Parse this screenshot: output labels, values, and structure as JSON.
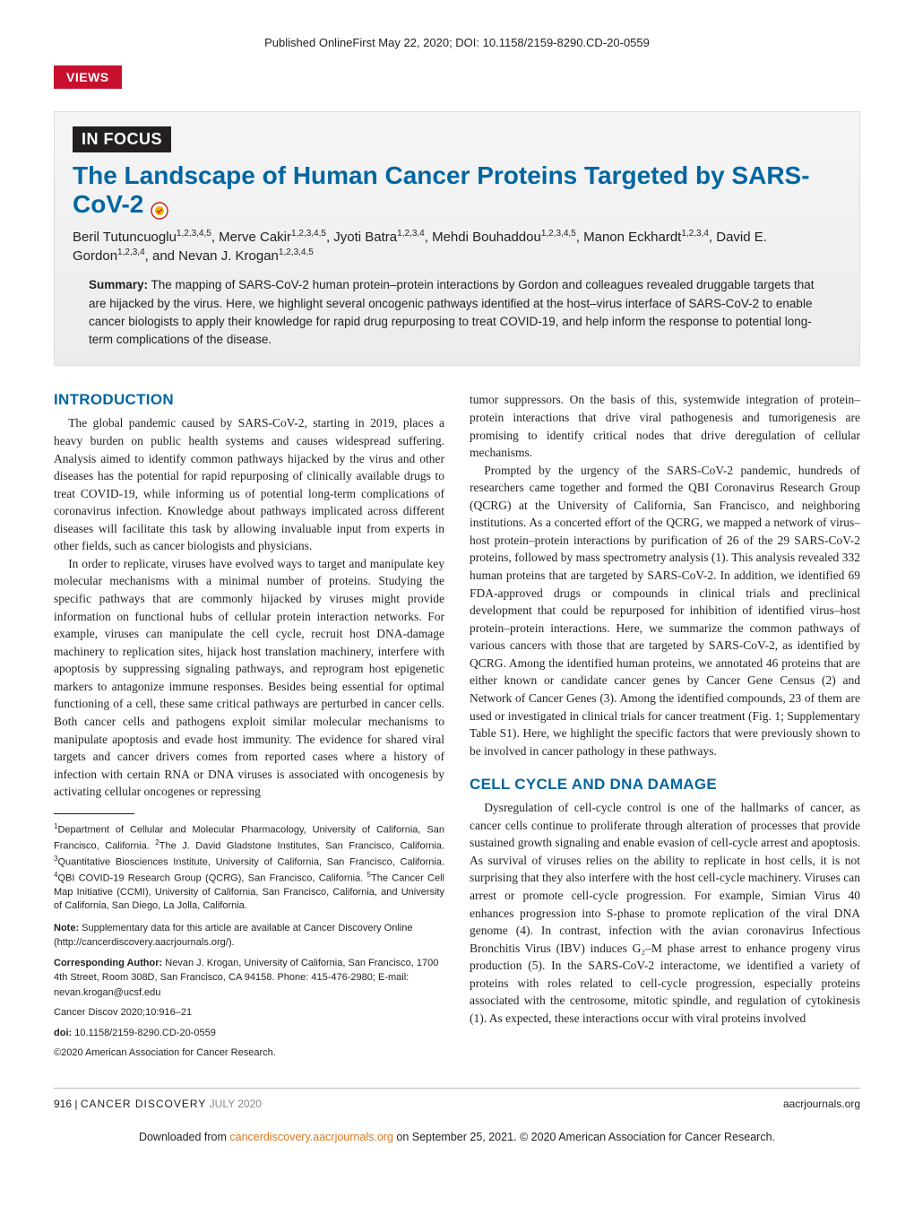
{
  "colors": {
    "brand_red": "#c8102e",
    "brand_blue": "#0066a1",
    "text": "#231f20",
    "header_bg_top": "#f5f5f5",
    "header_bg_bottom": "#ececec",
    "link_orange": "#d9781d",
    "muted": "#888888"
  },
  "typography": {
    "body_family": "Georgia, 'Times New Roman', serif",
    "ui_family": "Arial, sans-serif",
    "title_size_pt": 28,
    "section_head_size_pt": 17,
    "body_size_pt": 13.5,
    "affil_size_pt": 11
  },
  "pub_line": "Published OnlineFirst May 22, 2020; DOI: 10.1158/2159-8290.CD-20-0559",
  "views_label": "VIEWS",
  "section_tag": "IN FOCUS",
  "title": "The Landscape of Human Cancer Proteins Targeted by SARS-CoV-2",
  "check_icon_label": "Check for updates",
  "authors_html": "Beril Tutuncuoglu<sup>1,2,3,4,5</sup>, Merve Cakir<sup>1,2,3,4,5</sup>, Jyoti Batra<sup>1,2,3,4</sup>, Mehdi Bouhaddou<sup>1,2,3,4,5</sup>, Manon Eckhardt<sup>1,2,3,4</sup>, David E. Gordon<sup>1,2,3,4</sup>, and Nevan J. Krogan<sup>1,2,3,4,5</sup>",
  "summary_label": "Summary:",
  "summary_text": "The mapping of SARS-CoV-2 human protein–protein interactions by Gordon and colleagues revealed druggable targets that are hijacked by the virus. Here, we highlight several oncogenic pathways identified at the host–virus interface of SARS-CoV-2 to enable cancer biologists to apply their knowledge for rapid drug repurposing to treat COVID-19, and help inform the response to potential long-term complications of the disease.",
  "sections": {
    "intro_head": "INTRODUCTION",
    "intro_p1": "The global pandemic caused by SARS-CoV-2, starting in 2019, places a heavy burden on public health systems and causes widespread suffering. Analysis aimed to identify common pathways hijacked by the virus and other diseases has the potential for rapid repurposing of clinically available drugs to treat COVID-19, while informing us of potential long-term complications of coronavirus infection. Knowledge about pathways implicated across different diseases will facilitate this task by allowing invaluable input from experts in other fields, such as cancer biologists and physicians.",
    "intro_p2": "In order to replicate, viruses have evolved ways to target and manipulate key molecular mechanisms with a minimal number of proteins. Studying the specific pathways that are commonly hijacked by viruses might provide information on functional hubs of cellular protein interaction networks. For example, viruses can manipulate the cell cycle, recruit host DNA-damage machinery to replication sites, hijack host translation machinery, interfere with apoptosis by suppressing signaling pathways, and reprogram host epigenetic markers to antagonize immune responses. Besides being essential for optimal functioning of a cell, these same critical pathways are perturbed in cancer cells. Both cancer cells and pathogens exploit similar molecular mechanisms to manipulate apoptosis and evade host immunity. The evidence for shared viral targets and cancer drivers comes from reported cases where a history of infection with certain RNA or DNA viruses is associated with oncogenesis by activating cellular oncogenes or repressing",
    "col2_p1": "tumor suppressors. On the basis of this, systemwide integration of protein–protein interactions that drive viral pathogenesis and tumorigenesis are promising to identify critical nodes that drive deregulation of cellular mechanisms.",
    "col2_p2": "Prompted by the urgency of the SARS-CoV-2 pandemic, hundreds of researchers came together and formed the QBI Coronavirus Research Group (QCRG) at the University of California, San Francisco, and neighboring institutions. As a concerted effort of the QCRG, we mapped a network of virus–host protein–protein interactions by purification of 26 of the 29 SARS-CoV-2 proteins, followed by mass spectrometry analysis (1). This analysis revealed 332 human proteins that are targeted by SARS-CoV-2. In addition, we identified 69 FDA-approved drugs or compounds in clinical trials and preclinical development that could be repurposed for inhibition of identified virus–host protein–protein interactions. Here, we summarize the common pathways of various cancers with those that are targeted by SARS-CoV-2, as identified by QCRG. Among the identified human proteins, we annotated 46 proteins that are either known or candidate cancer genes by Cancer Gene Census (2) and Network of Cancer Genes (3). Among the identified compounds, 23 of them are used or investigated in clinical trials for cancer treatment (Fig. 1; Supplementary Table S1). Here, we highlight the specific factors that were previously shown to be involved in cancer pathology in these pathways.",
    "cell_cycle_head": "CELL CYCLE AND DNA DAMAGE",
    "cell_cycle_p1": "Dysregulation of cell-cycle control is one of the hallmarks of cancer, as cancer cells continue to proliferate through alteration of processes that provide sustained growth signaling and enable evasion of cell-cycle arrest and apoptosis. As survival of viruses relies on the ability to replicate in host cells, it is not surprising that they also interfere with the host cell-cycle machinery. Viruses can arrest or promote cell-cycle progression. For example, Simian Virus 40 enhances progression into S-phase to promote replication of the viral DNA genome (4). In contrast, infection with the avian coronavirus Infectious Bronchitis Virus (IBV) induces G₂–M phase arrest to enhance progeny virus production (5). In the SARS-CoV-2 interactome, we identified a variety of proteins with roles related to cell-cycle progression, especially proteins associated with the centrosome, mitotic spindle, and regulation of cytokinesis (1). As expected, these interactions occur with viral proteins involved"
  },
  "affiliations_html": "<sup>1</sup>Department of Cellular and Molecular Pharmacology, University of California, San Francisco, California. <sup>2</sup>The J. David Gladstone Institutes, San Francisco, California. <sup>3</sup>Quantitative Biosciences Institute, University of California, San Francisco, California. <sup>4</sup>QBI COVID-19 Research Group (QCRG), San Francisco, California. <sup>5</sup>The Cancer Cell Map Initiative (CCMI), University of California, San Francisco, California, and University of California, San Diego, La Jolla, California.",
  "note_label": "Note:",
  "note_text": "Supplementary data for this article are available at Cancer Discovery Online (http://cancerdiscovery.aacrjournals.org/).",
  "corr_label": "Corresponding Author:",
  "corr_text": "Nevan J. Krogan, University of California, San Francisco, 1700 4th Street, Room 308D, San Francisco, CA 94158. Phone: 415-476-2980; E-mail: nevan.krogan@ucsf.edu",
  "citation": "Cancer Discov 2020;10:916–21",
  "doi_label": "doi:",
  "doi_value": "10.1158/2159-8290.CD-20-0559",
  "copyright": "©2020 American Association for Cancer Research.",
  "footer": {
    "page": "916",
    "journal": "CANCER DISCOVERY",
    "month": "JULY 2020",
    "url": "aacrjournals.org"
  },
  "download": {
    "pre": "Downloaded from ",
    "link": "cancerdiscovery.aacrjournals.org",
    "post": " on September 25, 2021. © 2020 American Association for Cancer Research."
  }
}
